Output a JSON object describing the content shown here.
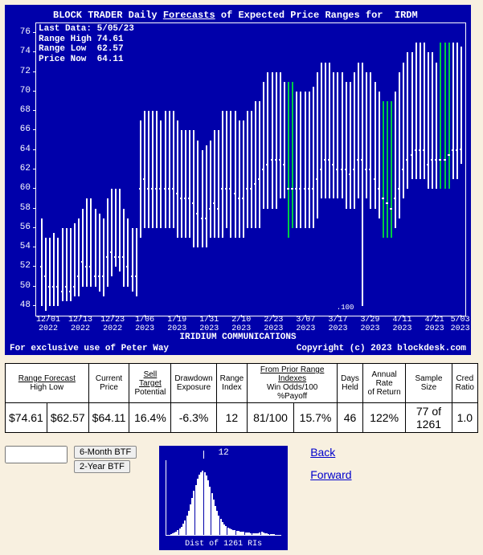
{
  "chart": {
    "title_prefix": "BLOCK TRADER Daily ",
    "title_underlined": "Forecasts",
    "title_suffix": " of Expected Price Ranges for  IRDM",
    "meta": "Last Data: 5/05/23\nRange High 74.61\nRange Low  62.57\nPrice Now  64.11",
    "subtitle": "IRIDIUM COMMUNICATIONS",
    "footer_left": "For exclusive use of Peter Way",
    "footer_right": "Copyright (c) 2023 blockdesk.com",
    "bg_color": "#0000aa",
    "bar_color_default": "#ffffff",
    "bar_color_alt": "#00cc44",
    "y_min": 47,
    "y_max": 77,
    "y_ticks": [
      48,
      50,
      52,
      54,
      56,
      58,
      60,
      62,
      64,
      66,
      68,
      70,
      72,
      74,
      76
    ],
    "x_labels": [
      "12/01\n2022",
      "12/13\n2022",
      "12/23\n2022",
      "1/06\n2023",
      "1/19\n2023",
      "1/31\n2023",
      "2/10\n2023",
      "2/23\n2023",
      "3/07\n2023",
      "3/17\n2023",
      "3/29\n2023",
      "4/11\n2023",
      "4/21\n2023",
      "5/03\n2023"
    ],
    "x_positions": [
      0.03,
      0.105,
      0.18,
      0.255,
      0.33,
      0.405,
      0.48,
      0.555,
      0.63,
      0.705,
      0.78,
      0.855,
      0.93,
      0.99
    ],
    "annotation_100": ".100",
    "annotation_100_x": 0.7,
    "annotation_100_y": 48.2,
    "bars": [
      {
        "h": 57,
        "l": 48,
        "p": 52,
        "c": 0
      },
      {
        "h": 55,
        "l": 47.5,
        "p": 51,
        "c": 0
      },
      {
        "h": 55,
        "l": 48,
        "p": 50,
        "c": 0
      },
      {
        "h": 55.5,
        "l": 48,
        "p": 50,
        "c": 0
      },
      {
        "h": 55,
        "l": 48,
        "p": 50,
        "c": 0
      },
      {
        "h": 56,
        "l": 48.5,
        "p": 49.5,
        "c": 0
      },
      {
        "h": 56,
        "l": 48.5,
        "p": 50,
        "c": 0
      },
      {
        "h": 56,
        "l": 48.5,
        "p": 49.5,
        "c": 0
      },
      {
        "h": 56.5,
        "l": 49,
        "p": 50,
        "c": 0
      },
      {
        "h": 57,
        "l": 49,
        "p": 51,
        "c": 0
      },
      {
        "h": 58,
        "l": 50,
        "p": 52.5,
        "c": 0
      },
      {
        "h": 59,
        "l": 50,
        "p": 52,
        "c": 0
      },
      {
        "h": 59,
        "l": 50,
        "p": 52,
        "c": 0
      },
      {
        "h": 58,
        "l": 50,
        "p": 51,
        "c": 0
      },
      {
        "h": 57.5,
        "l": 49.5,
        "p": 51,
        "c": 0
      },
      {
        "h": 57,
        "l": 49,
        "p": 51,
        "c": 0
      },
      {
        "h": 59,
        "l": 50,
        "p": 53,
        "c": 0
      },
      {
        "h": 60,
        "l": 51,
        "p": 53.5,
        "c": 0
      },
      {
        "h": 60,
        "l": 52,
        "p": 53,
        "c": 0
      },
      {
        "h": 60,
        "l": 51.5,
        "p": 53,
        "c": 0
      },
      {
        "h": 58,
        "l": 50,
        "p": 53,
        "c": 0
      },
      {
        "h": 57,
        "l": 50,
        "p": 52,
        "c": 0
      },
      {
        "h": 56,
        "l": 49.5,
        "p": 51,
        "c": 0
      },
      {
        "h": 56,
        "l": 49,
        "p": 51,
        "c": 0
      },
      {
        "h": 67,
        "l": 55,
        "p": 60,
        "c": 0
      },
      {
        "h": 68,
        "l": 56,
        "p": 61,
        "c": 0
      },
      {
        "h": 68,
        "l": 56,
        "p": 60,
        "c": 0
      },
      {
        "h": 68,
        "l": 56,
        "p": 60,
        "c": 0
      },
      {
        "h": 68,
        "l": 56,
        "p": 60,
        "c": 0
      },
      {
        "h": 67,
        "l": 56,
        "p": 60,
        "c": 0
      },
      {
        "h": 68,
        "l": 56,
        "p": 60,
        "c": 0
      },
      {
        "h": 68,
        "l": 56,
        "p": 60,
        "c": 0
      },
      {
        "h": 68,
        "l": 56,
        "p": 60,
        "c": 0
      },
      {
        "h": 67,
        "l": 55,
        "p": 59.5,
        "c": 0
      },
      {
        "h": 66,
        "l": 55,
        "p": 59,
        "c": 0
      },
      {
        "h": 66,
        "l": 55,
        "p": 59,
        "c": 0
      },
      {
        "h": 66,
        "l": 55,
        "p": 59,
        "c": 0
      },
      {
        "h": 66,
        "l": 54,
        "p": 58.5,
        "c": 0
      },
      {
        "h": 65,
        "l": 54,
        "p": 57.5,
        "c": 0
      },
      {
        "h": 64,
        "l": 54,
        "p": 57,
        "c": 0
      },
      {
        "h": 64.5,
        "l": 54,
        "p": 57,
        "c": 0
      },
      {
        "h": 65,
        "l": 55,
        "p": 58,
        "c": 0
      },
      {
        "h": 66,
        "l": 55,
        "p": 58.5,
        "c": 0
      },
      {
        "h": 66,
        "l": 55,
        "p": 58,
        "c": 0
      },
      {
        "h": 68,
        "l": 55,
        "p": 60,
        "c": 0
      },
      {
        "h": 68,
        "l": 56,
        "p": 60,
        "c": 0
      },
      {
        "h": 68,
        "l": 55,
        "p": 60,
        "c": 0
      },
      {
        "h": 68,
        "l": 55,
        "p": 59.5,
        "c": 0
      },
      {
        "h": 67,
        "l": 55,
        "p": 59,
        "c": 0
      },
      {
        "h": 67,
        "l": 55,
        "p": 59,
        "c": 0
      },
      {
        "h": 68,
        "l": 56,
        "p": 60,
        "c": 0
      },
      {
        "h": 68,
        "l": 56,
        "p": 60,
        "c": 0
      },
      {
        "h": 69,
        "l": 56,
        "p": 60.5,
        "c": 0
      },
      {
        "h": 69,
        "l": 56,
        "p": 61,
        "c": 0
      },
      {
        "h": 71,
        "l": 58,
        "p": 62,
        "c": 0
      },
      {
        "h": 72,
        "l": 58,
        "p": 62.5,
        "c": 0
      },
      {
        "h": 72,
        "l": 58,
        "p": 63,
        "c": 0
      },
      {
        "h": 72,
        "l": 58,
        "p": 63,
        "c": 0
      },
      {
        "h": 72,
        "l": 59,
        "p": 63,
        "c": 0
      },
      {
        "h": 71,
        "l": 59,
        "p": 62.5,
        "c": 0
      },
      {
        "h": 71,
        "l": 55,
        "p": 60,
        "c": 1
      },
      {
        "h": 71,
        "l": 56,
        "p": 60,
        "c": 1
      },
      {
        "h": 70,
        "l": 56,
        "p": 60,
        "c": 0
      },
      {
        "h": 70,
        "l": 56,
        "p": 60,
        "c": 0
      },
      {
        "h": 70,
        "l": 56,
        "p": 60,
        "c": 0
      },
      {
        "h": 70,
        "l": 56,
        "p": 60,
        "c": 0
      },
      {
        "h": 70.5,
        "l": 56,
        "p": 60,
        "c": 0
      },
      {
        "h": 72,
        "l": 57,
        "p": 61,
        "c": 0
      },
      {
        "h": 73,
        "l": 59,
        "p": 62,
        "c": 0
      },
      {
        "h": 73,
        "l": 59,
        "p": 63,
        "c": 0
      },
      {
        "h": 73,
        "l": 59,
        "p": 63,
        "c": 0
      },
      {
        "h": 72,
        "l": 59,
        "p": 62.5,
        "c": 0
      },
      {
        "h": 72,
        "l": 59,
        "p": 62,
        "c": 0
      },
      {
        "h": 72,
        "l": 59,
        "p": 62,
        "c": 0
      },
      {
        "h": 71,
        "l": 58,
        "p": 62,
        "c": 0
      },
      {
        "h": 71,
        "l": 58,
        "p": 61.5,
        "c": 0
      },
      {
        "h": 72,
        "l": 58,
        "p": 62,
        "c": 0
      },
      {
        "h": 73,
        "l": 59,
        "p": 63,
        "c": 0
      },
      {
        "h": 73,
        "l": 48,
        "p": 63,
        "c": 0
      },
      {
        "h": 72,
        "l": 59,
        "p": 62,
        "c": 0
      },
      {
        "h": 72,
        "l": 58,
        "p": 62,
        "c": 0
      },
      {
        "h": 71,
        "l": 58,
        "p": 61,
        "c": 0
      },
      {
        "h": 70,
        "l": 57,
        "p": 60,
        "c": 0
      },
      {
        "h": 69,
        "l": 55,
        "p": 59,
        "c": 1
      },
      {
        "h": 69,
        "l": 55,
        "p": 58.5,
        "c": 1
      },
      {
        "h": 69,
        "l": 55,
        "p": 58,
        "c": 1
      },
      {
        "h": 70,
        "l": 56,
        "p": 59,
        "c": 0
      },
      {
        "h": 72,
        "l": 57,
        "p": 60,
        "c": 0
      },
      {
        "h": 73,
        "l": 59,
        "p": 62,
        "c": 0
      },
      {
        "h": 74,
        "l": 60,
        "p": 63,
        "c": 0
      },
      {
        "h": 74,
        "l": 61,
        "p": 63.5,
        "c": 0
      },
      {
        "h": 75,
        "l": 61,
        "p": 64,
        "c": 0
      },
      {
        "h": 75,
        "l": 61,
        "p": 64,
        "c": 0
      },
      {
        "h": 75,
        "l": 61,
        "p": 64,
        "c": 0
      },
      {
        "h": 74,
        "l": 60,
        "p": 62.5,
        "c": 0
      },
      {
        "h": 74,
        "l": 60,
        "p": 63,
        "c": 0
      },
      {
        "h": 73,
        "l": 60,
        "p": 63,
        "c": 0
      },
      {
        "h": 75,
        "l": 60,
        "p": 63,
        "c": 1
      },
      {
        "h": 75,
        "l": 60,
        "p": 63,
        "c": 1
      },
      {
        "h": 75,
        "l": 60,
        "p": 63.5,
        "c": 1
      },
      {
        "h": 75,
        "l": 61,
        "p": 64,
        "c": 0
      },
      {
        "h": 75,
        "l": 61,
        "p": 64,
        "c": 0
      },
      {
        "h": 74.6,
        "l": 62.6,
        "p": 64.1,
        "c": 0
      }
    ]
  },
  "table": {
    "headers": [
      {
        "line1u": "Range Forecast",
        "line2": "High        Low",
        "colspan": 2
      },
      {
        "line1": "Current",
        "line2": "Price"
      },
      {
        "line1u": "Sell Target",
        "line2": "Potential"
      },
      {
        "line1": "Drawdown",
        "line2": "Exposure"
      },
      {
        "line1": "Range",
        "line2": "Index"
      },
      {
        "line1u": "From Prior Range Indexes",
        "line2": "Win Odds/100      %Payoff",
        "colspan": 2
      },
      {
        "line1": "Days",
        "line2": "Held"
      },
      {
        "line1": "Annual Rate",
        "line2": "of Return"
      },
      {
        "line1": "Sample Size"
      },
      {
        "line1": "Cred",
        "line2": "Ratio"
      }
    ],
    "row": [
      "$74.61",
      "$62.57",
      "$64.11",
      "16.4%",
      "-6.3%",
      "12",
      "81/100",
      "15.7%",
      "46",
      "122%",
      "77 of 1261",
      "1.0"
    ]
  },
  "controls": {
    "btn1": "6-Month BTF",
    "btn2": "2-Year BTF"
  },
  "histogram": {
    "top_label": "12",
    "bottom_label": "Dist of 1261 RIs",
    "marker_pos": 0.32,
    "bars": [
      0,
      0,
      1,
      2,
      3,
      4,
      6,
      8,
      10,
      14,
      18,
      24,
      30,
      38,
      46,
      55,
      62,
      70,
      75,
      78,
      80,
      78,
      74,
      68,
      60,
      52,
      44,
      36,
      30,
      24,
      20,
      16,
      13,
      11,
      9,
      8,
      7,
      6,
      6,
      5,
      5,
      4,
      4,
      4,
      3,
      3,
      3,
      2,
      2,
      2,
      2,
      2,
      3,
      4,
      3,
      2,
      2,
      1,
      1,
      1,
      1,
      0,
      0,
      0,
      0
    ]
  },
  "links": {
    "back": "Back",
    "forward": "Forward"
  }
}
